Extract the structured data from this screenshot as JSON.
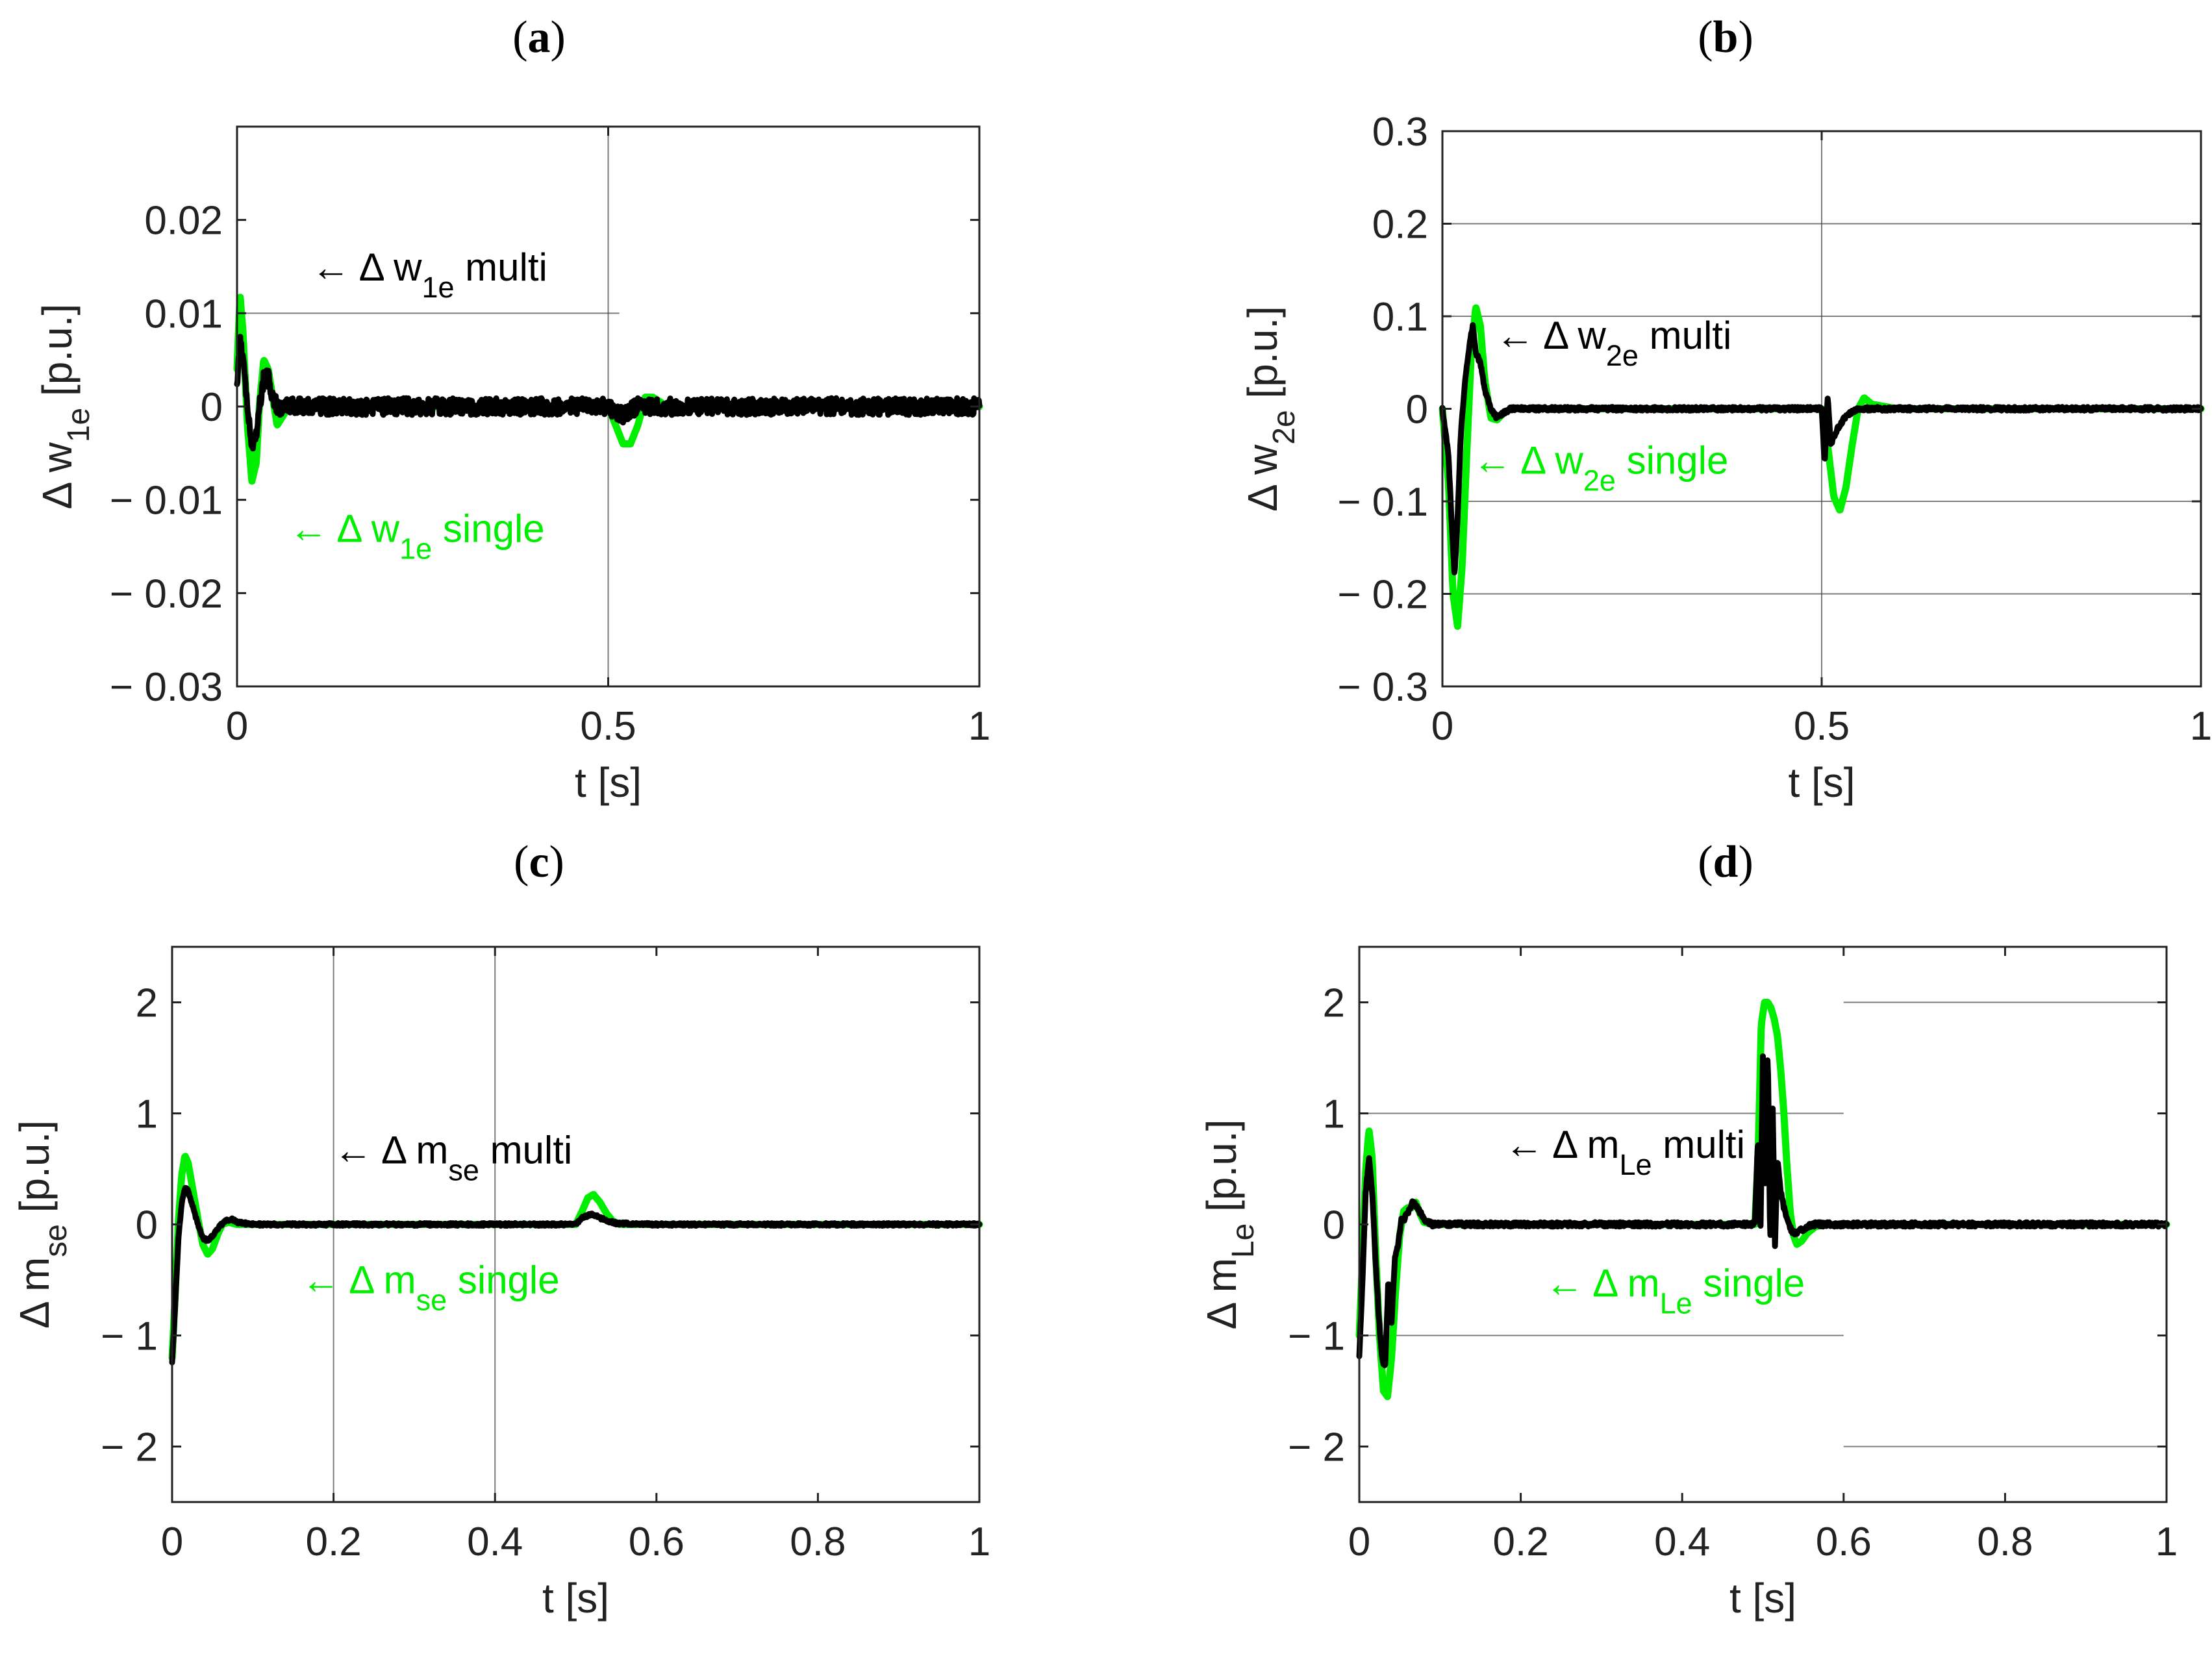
{
  "colors": {
    "multi": "#000000",
    "single": "#00ee00",
    "axis": "#222222",
    "grid": "#444444",
    "background": "#ffffff"
  },
  "chart_data": [
    {
      "id": "a",
      "type": "line",
      "panel_label": "a",
      "xlabel": "t [s]",
      "ylabel": {
        "base": "Δ w",
        "sub": "1e",
        "unit": " [p.u.]"
      },
      "xlim": [
        0,
        1
      ],
      "ylim": [
        -0.03,
        0.03
      ],
      "xticks": [
        0,
        0.5,
        1
      ],
      "xtick_labels": [
        "0",
        "0.5",
        "1"
      ],
      "yticks": [
        -0.03,
        -0.02,
        -0.01,
        0,
        0.01,
        0.02
      ],
      "ytick_labels": [
        "− 0.03",
        "− 0.02",
        "− 0.01",
        "0",
        "0.01",
        "0.02"
      ],
      "grid_v": [
        0.5
      ],
      "grid_h": [
        {
          "y": 0.01,
          "x0": 0,
          "x1": 0.515
        }
      ],
      "noise": 0.0009,
      "series": [
        {
          "name": "Δ w1e single",
          "kind": "single",
          "x": [
            0,
            0.004,
            0.008,
            0.014,
            0.02,
            0.026,
            0.03,
            0.036,
            0.042,
            0.048,
            0.054,
            0.062,
            0.07,
            0.08,
            0.1,
            0.2,
            0.3,
            0.4,
            0.5,
            0.51,
            0.52,
            0.53,
            0.54,
            0.55,
            0.56,
            0.58,
            0.6,
            0.7,
            0.8,
            0.9,
            1
          ],
          "y": [
            0.004,
            0.012,
            0.008,
            -0.002,
            -0.008,
            -0.006,
            0,
            0.005,
            0.004,
            0.001,
            -0.002,
            -0.001,
            0,
            0,
            0,
            0,
            0,
            0,
            0,
            -0.002,
            -0.004,
            -0.004,
            -0.002,
            0.001,
            0.001,
            0,
            0,
            0,
            0,
            0,
            0
          ]
        },
        {
          "name": "Δ w1e multi",
          "kind": "multi",
          "x": [
            0,
            0.004,
            0.008,
            0.014,
            0.02,
            0.026,
            0.03,
            0.036,
            0.042,
            0.048,
            0.054,
            0.062,
            0.07,
            0.1,
            0.2,
            0.3,
            0.4,
            0.5,
            0.52,
            0.54,
            0.56,
            0.6,
            0.7,
            0.8,
            0.9,
            1
          ],
          "y": [
            0.002,
            0.007,
            0.005,
            0,
            -0.004,
            -0.003,
            0,
            0.003,
            0.003,
            0.001,
            0,
            0,
            0,
            0,
            0,
            0,
            0,
            0,
            -0.001,
            0,
            0,
            0,
            0,
            0,
            0,
            0
          ]
        }
      ],
      "annotations": [
        {
          "kind": "multi",
          "text_pre": "← Δ w",
          "sub": "1e",
          "text_post": " multi",
          "x": 0.1,
          "y": 0.0135
        },
        {
          "kind": "single",
          "text_pre": "← Δ w",
          "sub": "1e",
          "text_post": " single",
          "x": 0.07,
          "y": -0.0145
        }
      ]
    },
    {
      "id": "b",
      "type": "line",
      "panel_label": "b",
      "xlabel": "t [s]",
      "ylabel": {
        "base": "Δ w",
        "sub": "2e",
        "unit": " [p.u.]"
      },
      "xlim": [
        0,
        1
      ],
      "ylim": [
        -0.3,
        0.3
      ],
      "xticks": [
        0,
        0.5,
        1
      ],
      "xtick_labels": [
        "0",
        "0.5",
        "1"
      ],
      "yticks": [
        -0.3,
        -0.2,
        -0.1,
        0,
        0.1,
        0.2,
        0.3
      ],
      "ytick_labels": [
        "− 0.3",
        "− 0.2",
        "− 0.1",
        "0",
        "0.1",
        "0.2",
        "0.3"
      ],
      "grid_v": [
        0.5
      ],
      "grid_h": [
        {
          "y": 0.2,
          "x0": 0,
          "x1": 1
        },
        {
          "y": 0.1,
          "x0": 0,
          "x1": 1
        },
        {
          "y": -0.1,
          "x0": 0,
          "x1": 1
        },
        {
          "y": -0.2,
          "x0": 0,
          "x1": 1
        }
      ],
      "noise": 0.002,
      "series": [
        {
          "name": "Δ w2e single",
          "kind": "single",
          "x": [
            0,
            0.008,
            0.014,
            0.02,
            0.026,
            0.032,
            0.038,
            0.044,
            0.05,
            0.056,
            0.064,
            0.072,
            0.08,
            0.09,
            0.1,
            0.2,
            0.3,
            0.4,
            0.5,
            0.508,
            0.516,
            0.524,
            0.532,
            0.54,
            0.548,
            0.556,
            0.566,
            0.6,
            0.7,
            0.8,
            0.9,
            1
          ],
          "y": [
            0,
            -0.08,
            -0.2,
            -0.235,
            -0.17,
            -0.05,
            0.06,
            0.11,
            0.09,
            0.03,
            -0.01,
            -0.012,
            -0.005,
            0,
            0,
            0,
            0,
            0,
            0,
            -0.04,
            -0.095,
            -0.11,
            -0.085,
            -0.04,
            0,
            0.012,
            0.005,
            0,
            0,
            0,
            0,
            0
          ]
        },
        {
          "name": "Δ w2e multi",
          "kind": "multi",
          "x": [
            0,
            0.008,
            0.012,
            0.016,
            0.02,
            0.024,
            0.03,
            0.036,
            0.04,
            0.044,
            0.05,
            0.056,
            0.064,
            0.072,
            0.08,
            0.09,
            0.1,
            0.2,
            0.3,
            0.4,
            0.5,
            0.504,
            0.508,
            0.512,
            0.516,
            0.522,
            0.53,
            0.54,
            0.55,
            0.6,
            0.7,
            0.8,
            0.9,
            1
          ],
          "y": [
            0,
            -0.05,
            -0.12,
            -0.18,
            -0.12,
            -0.03,
            0.03,
            0.07,
            0.09,
            0.06,
            0.05,
            0.02,
            0,
            -0.01,
            -0.005,
            0,
            0,
            0,
            0,
            0,
            0,
            -0.06,
            0.015,
            -0.04,
            -0.03,
            -0.02,
            -0.01,
            -0.003,
            0,
            0,
            0,
            0,
            0,
            0
          ]
        }
      ],
      "annotations": [
        {
          "kind": "multi",
          "text_pre": "← Δ w",
          "sub": "2e",
          "text_post": " multi",
          "x": 0.07,
          "y": 0.065
        },
        {
          "kind": "single",
          "text_pre": "← Δ w",
          "sub": "2e",
          "text_post": " single",
          "x": 0.04,
          "y": -0.07
        }
      ]
    },
    {
      "id": "c",
      "type": "line",
      "panel_label": "c",
      "xlabel": "t [s]",
      "ylabel": {
        "base": "Δ m",
        "sub": "se",
        "unit": " [p.u.]"
      },
      "xlim": [
        0,
        1
      ],
      "ylim": [
        -2.5,
        2.5
      ],
      "xticks": [
        0,
        0.2,
        0.4,
        0.6,
        0.8,
        1
      ],
      "xtick_labels": [
        "0",
        "0.2",
        "0.4",
        "0.6",
        "0.8",
        "1"
      ],
      "yticks": [
        -2,
        -1,
        0,
        1,
        2
      ],
      "ytick_labels": [
        "− 2",
        "− 1",
        "0",
        "1",
        "2"
      ],
      "grid_v": [
        0.2,
        0.4
      ],
      "grid_h": [],
      "noise": 0.012,
      "series": [
        {
          "name": "Δ mse single",
          "kind": "single",
          "x": [
            0,
            0.004,
            0.008,
            0.012,
            0.016,
            0.02,
            0.026,
            0.032,
            0.038,
            0.044,
            0.05,
            0.056,
            0.062,
            0.07,
            0.08,
            0.1,
            0.2,
            0.3,
            0.4,
            0.5,
            0.508,
            0.515,
            0.522,
            0.53,
            0.538,
            0.546,
            0.555,
            0.6,
            0.7,
            0.8,
            0.9,
            1
          ],
          "y": [
            -1.2,
            -0.6,
            0.05,
            0.45,
            0.62,
            0.55,
            0.3,
            0.05,
            -0.18,
            -0.27,
            -0.22,
            -0.1,
            0,
            0.02,
            0,
            0,
            0,
            0,
            0,
            0,
            0.12,
            0.24,
            0.27,
            0.2,
            0.1,
            0.03,
            0,
            0,
            0,
            0,
            0,
            0
          ]
        },
        {
          "name": "Δ mse multi",
          "kind": "multi",
          "x": [
            0,
            0.004,
            0.008,
            0.012,
            0.016,
            0.02,
            0.026,
            0.032,
            0.038,
            0.044,
            0.05,
            0.058,
            0.066,
            0.074,
            0.08,
            0.1,
            0.2,
            0.3,
            0.4,
            0.5,
            0.51,
            0.52,
            0.53,
            0.54,
            0.55,
            0.6,
            0.7,
            0.8,
            0.9,
            1
          ],
          "y": [
            -1.25,
            -0.7,
            -0.1,
            0.2,
            0.33,
            0.3,
            0.15,
            0,
            -0.12,
            -0.15,
            -0.1,
            -0.02,
            0.03,
            0.05,
            0.02,
            0,
            0,
            0,
            0,
            0,
            0.07,
            0.09,
            0.06,
            0.03,
            0.01,
            0,
            0,
            0,
            0,
            0
          ]
        }
      ],
      "annotations": [
        {
          "kind": "multi",
          "text_pre": "← Δ m",
          "sub": "se",
          "text_post": " multi",
          "x": 0.2,
          "y": 0.55
        },
        {
          "kind": "single",
          "text_pre": "← Δ m",
          "sub": "se",
          "text_post": " single",
          "x": 0.16,
          "y": -0.62
        }
      ]
    },
    {
      "id": "d",
      "type": "line",
      "panel_label": "d",
      "xlabel": "t [s]",
      "ylabel": {
        "base": "Δ m",
        "sub": "Le",
        "unit": " [p.u.]"
      },
      "xlim": [
        0,
        1
      ],
      "ylim": [
        -2.5,
        2.5
      ],
      "xticks": [
        0,
        0.2,
        0.4,
        0.6,
        0.8,
        1
      ],
      "xtick_labels": [
        "0",
        "0.2",
        "0.4",
        "0.6",
        "0.8",
        "1"
      ],
      "yticks": [
        -2,
        -1,
        0,
        1,
        2
      ],
      "ytick_labels": [
        "− 2",
        "− 1",
        "0",
        "1",
        "2"
      ],
      "grid_v": [],
      "grid_h": [
        {
          "y": 1,
          "x0": 0,
          "x1": 0.6
        },
        {
          "y": -1,
          "x0": 0,
          "x1": 0.6
        },
        {
          "y": 2,
          "x0": 0.6,
          "x1": 1
        },
        {
          "y": -2,
          "x0": 0.6,
          "x1": 1
        }
      ],
      "noise": 0.02,
      "series": [
        {
          "name": "Δ mLe single",
          "kind": "single",
          "x": [
            0,
            0.004,
            0.008,
            0.012,
            0.016,
            0.02,
            0.025,
            0.03,
            0.035,
            0.04,
            0.045,
            0.05,
            0.055,
            0.06,
            0.065,
            0.07,
            0.075,
            0.08,
            0.09,
            0.1,
            0.2,
            0.3,
            0.4,
            0.49,
            0.494,
            0.498,
            0.502,
            0.506,
            0.51,
            0.514,
            0.518,
            0.522,
            0.526,
            0.53,
            0.534,
            0.538,
            0.542,
            0.548,
            0.555,
            0.565,
            0.58,
            0.6,
            0.7,
            0.8,
            0.9,
            1
          ],
          "y": [
            -1,
            -0.3,
            0.5,
            0.85,
            0.6,
            -0.2,
            -1.0,
            -1.5,
            -1.55,
            -1.2,
            -0.6,
            -0.1,
            0.12,
            0.15,
            0.15,
            0.2,
            0.1,
            0.02,
            0,
            0,
            0,
            0,
            0,
            0,
            0.6,
            1.8,
            2.0,
            2.0,
            1.95,
            1.85,
            1.7,
            1.4,
            1.0,
            0.5,
            0.1,
            -0.1,
            -0.18,
            -0.15,
            -0.08,
            -0.02,
            0,
            0,
            0,
            0,
            0,
            0
          ]
        },
        {
          "name": "Δ mLe multi",
          "kind": "multi",
          "x": [
            0,
            0.004,
            0.008,
            0.012,
            0.016,
            0.02,
            0.024,
            0.028,
            0.032,
            0.036,
            0.04,
            0.044,
            0.048,
            0.052,
            0.056,
            0.06,
            0.066,
            0.072,
            0.08,
            0.09,
            0.1,
            0.2,
            0.3,
            0.4,
            0.49,
            0.494,
            0.497,
            0.5,
            0.503,
            0.506,
            0.509,
            0.512,
            0.515,
            0.518,
            0.522,
            0.526,
            0.53,
            0.535,
            0.54,
            0.548,
            0.555,
            0.565,
            0.58,
            0.6,
            0.7,
            0.8,
            0.9,
            1
          ],
          "y": [
            -1.2,
            -0.5,
            0.3,
            0.6,
            0.3,
            -0.3,
            -0.8,
            -1.2,
            -1.3,
            -0.5,
            -0.9,
            -0.3,
            -0.2,
            0.05,
            0.05,
            0.1,
            0.2,
            0.15,
            0.05,
            0,
            0,
            0,
            0,
            0,
            0,
            0.8,
            -0.1,
            1.5,
            0.3,
            1.6,
            -0.2,
            1.1,
            -0.2,
            0.6,
            0.3,
            0.15,
            0.05,
            -0.05,
            -0.08,
            -0.05,
            -0.02,
            0,
            0,
            0,
            0,
            0,
            0,
            0
          ]
        }
      ],
      "annotations": [
        {
          "kind": "multi",
          "text_pre": "← Δ m",
          "sub": "Le",
          "text_post": " multi",
          "x": 0.18,
          "y": 0.6
        },
        {
          "kind": "single",
          "text_pre": "← Δ m",
          "sub": "Le",
          "text_post": " single",
          "x": 0.23,
          "y": -0.65
        }
      ]
    }
  ]
}
